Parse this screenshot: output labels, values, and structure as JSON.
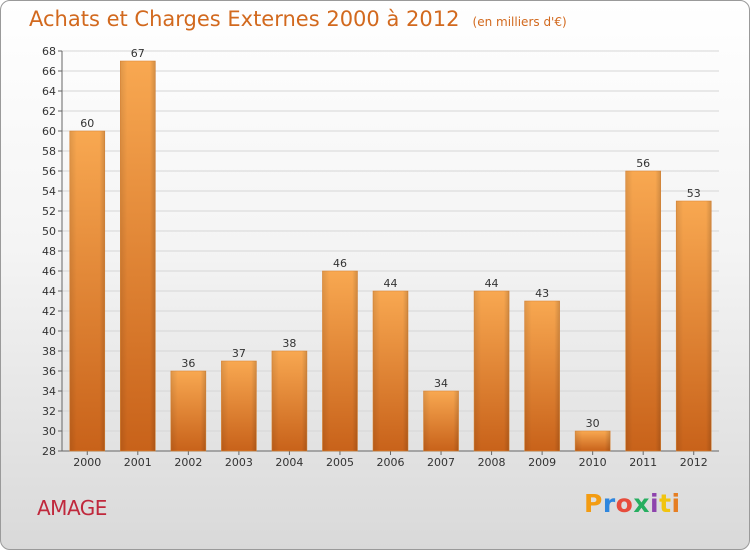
{
  "header": {
    "title": "Achats et Charges Externes 2000 à 2012",
    "subtitle": "(en milliers d'€)"
  },
  "footer": {
    "commune": "AMAGE",
    "logo": "Proxiti"
  },
  "colors": {
    "bar_light": "#f7a44e",
    "bar_dark": "#c8621a",
    "title": "#d2691e",
    "commune": "#c0283c"
  },
  "chart_data": {
    "type": "bar",
    "title": "Achats et Charges Externes 2000 à 2012",
    "subtitle": "(en milliers d'€)",
    "categories": [
      "2000",
      "2001",
      "2002",
      "2003",
      "2004",
      "2005",
      "2006",
      "2007",
      "2008",
      "2009",
      "2010",
      "2011",
      "2012"
    ],
    "values": [
      60,
      67,
      36,
      37,
      38,
      46,
      44,
      34,
      44,
      43,
      30,
      56,
      53
    ],
    "ylim": [
      28,
      68
    ],
    "yticks": [
      28,
      30,
      32,
      34,
      36,
      38,
      40,
      42,
      44,
      46,
      48,
      50,
      52,
      54,
      56,
      58,
      60,
      62,
      64,
      66,
      68
    ],
    "grid": true
  }
}
